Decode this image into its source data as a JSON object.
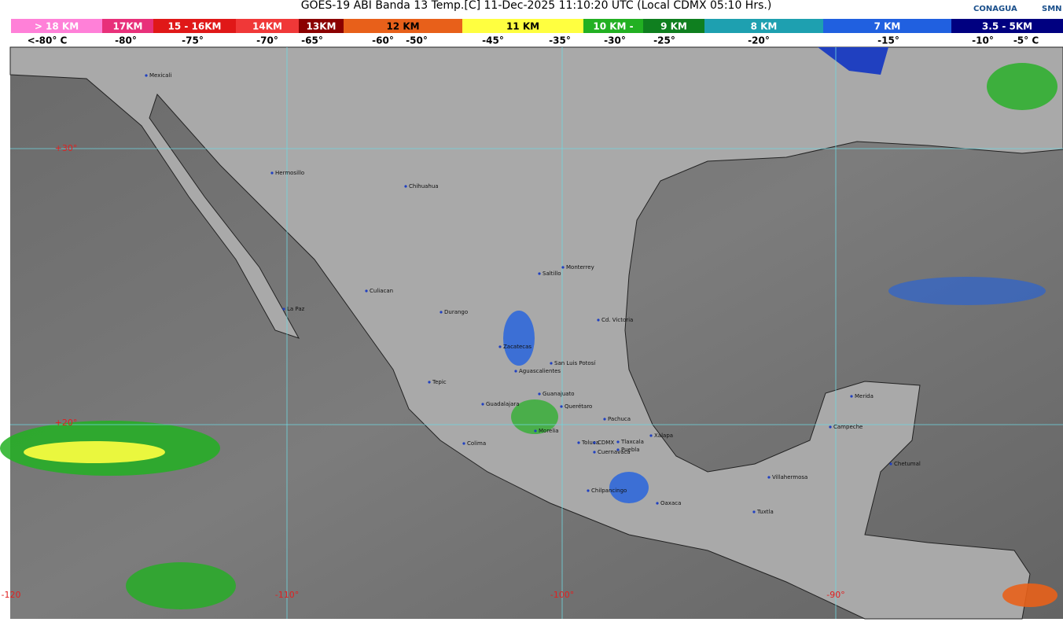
{
  "title": "GOES-19 ABI Banda 13 Temp.[C] 11-Dec-2025 11:10:20 UTC (Local CDMX  05:10 Hrs.)",
  "logos": [
    "CONAGUA",
    "SMN"
  ],
  "legend": [
    {
      "label": "> 18 KM",
      "color": "#ff80d8"
    },
    {
      "label": "17KM",
      "color": "#e8307a"
    },
    {
      "label": "15 - 16KM",
      "color": "#e01818"
    },
    {
      "label": "14KM",
      "color": "#f03838"
    },
    {
      "label": "13KM",
      "color": "#8b0000"
    },
    {
      "label": "12 KM",
      "color": "#e8601a"
    },
    {
      "label": "11 KM",
      "color": "#ffff40"
    },
    {
      "label": "10 KM -",
      "color": "#22b022"
    },
    {
      "label": "9 KM",
      "color": "#0f7f1f"
    },
    {
      "label": "8 KM",
      "color": "#1ea0b0"
    },
    {
      "label": "7 KM",
      "color": "#2060e0"
    },
    {
      "label": "3.5 - 5KM",
      "color": "#000080"
    }
  ],
  "temperatures": [
    "<-80° C",
    "-80°",
    "-75°",
    "-70°",
    "-65°",
    "-60°",
    "-50°",
    "-45°",
    "-35°",
    "-30°",
    "-25°",
    "-20°",
    "-15°",
    "-10°",
    "-5° C"
  ],
  "grid_labels": {
    "lat": [
      "+30°",
      "+20°"
    ],
    "lon": [
      "-120",
      "-110°",
      "-100°",
      "-90°"
    ]
  },
  "cities": [
    "Mexicali",
    "Hermosillo",
    "Chihuahua",
    "La Paz",
    "Culiacan",
    "Durango",
    "Saltillo",
    "Monterrey",
    "Cd. Victoria",
    "Zacatecas",
    "San Luis Potosí",
    "Aguascalientes",
    "Tepic",
    "Guanajuato",
    "Guadalajara",
    "Querétaro",
    "Pachuca",
    "Morelia",
    "Colima",
    "Tlaxcala",
    "Toluca",
    "CDMX",
    "Puebla",
    "Cuernavaca",
    "Xalapa",
    "Chilpancingo",
    "Oaxaca",
    "Villahermosa",
    "Tuxtla",
    "Campeche",
    "Merida",
    "Chetumal"
  ]
}
